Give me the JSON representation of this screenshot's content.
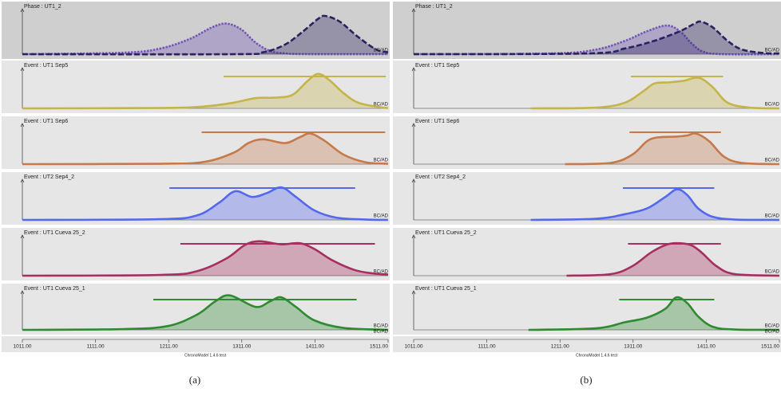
{
  "chart_data": [
    {
      "type": "area",
      "caption": "(a)",
      "footer": "ChronoModel 1.4.6 test",
      "axis_unit": "BC/AD",
      "xlim": [
        1011,
        1511
      ],
      "xticks": [
        {
          "value": 1011,
          "label": "1011.00"
        },
        {
          "value": 1111,
          "label": "1111.00"
        },
        {
          "value": 1211,
          "label": "1211.00"
        },
        {
          "value": 1311,
          "label": "1311.00"
        },
        {
          "value": 1411,
          "label": "1411.00"
        },
        {
          "value": 1511,
          "label": "1511.00"
        }
      ],
      "rows": [
        {
          "title": "Phase : UT1_2",
          "series": [
            {
              "color": "#7356b8",
              "style": "dotted",
              "x": [
                1011,
                1150,
                1200,
                1240,
                1270,
                1290,
                1310,
                1330,
                1350,
                1370,
                1400,
                1511
              ],
              "values": [
                0,
                0.04,
                0.15,
                0.4,
                0.7,
                0.8,
                0.65,
                0.3,
                0.08,
                0.02,
                0,
                0
              ]
            },
            {
              "color": "#2a2160",
              "style": "dashed",
              "x": [
                1011,
                1300,
                1340,
                1370,
                1395,
                1415,
                1425,
                1445,
                1470,
                1495,
                1511
              ],
              "values": [
                0,
                0,
                0.05,
                0.25,
                0.6,
                0.92,
                1.0,
                0.85,
                0.45,
                0.12,
                0.05
              ]
            }
          ]
        },
        {
          "title": "Event : UT1 Sep5",
          "interval": [
            1286,
            1508
          ],
          "series": [
            {
              "color": "#c4b44a",
              "x": [
                1011,
                1200,
                1260,
                1300,
                1330,
                1355,
                1380,
                1400,
                1415,
                1430,
                1450,
                1470,
                1500,
                1511
              ],
              "values": [
                0,
                0.01,
                0.05,
                0.15,
                0.27,
                0.28,
                0.35,
                0.7,
                0.9,
                0.75,
                0.4,
                0.15,
                0.03,
                0.01
              ]
            }
          ]
        },
        {
          "title": "Event : UT1 Sep6",
          "interval": [
            1256,
            1507
          ],
          "series": [
            {
              "color": "#c57a4c",
              "x": [
                1011,
                1200,
                1260,
                1300,
                1320,
                1340,
                1370,
                1390,
                1405,
                1425,
                1450,
                1480,
                1511
              ],
              "values": [
                0,
                0.01,
                0.06,
                0.3,
                0.55,
                0.65,
                0.55,
                0.7,
                0.8,
                0.6,
                0.25,
                0.05,
                0.01
              ]
            }
          ]
        },
        {
          "title": "Event : UT2 Sep4_2",
          "interval": [
            1212,
            1466
          ],
          "series": [
            {
              "color": "#5468ee",
              "x": [
                1011,
                1200,
                1250,
                1280,
                1302,
                1325,
                1345,
                1365,
                1385,
                1410,
                1440,
                1480,
                1511
              ],
              "values": [
                0,
                0.02,
                0.12,
                0.45,
                0.75,
                0.6,
                0.7,
                0.85,
                0.6,
                0.25,
                0.06,
                0.01,
                0
              ]
            }
          ]
        },
        {
          "title": "Event : UT1 Cueva 25_2",
          "interval": [
            1227,
            1493
          ],
          "series": [
            {
              "color": "#a5305f",
              "x": [
                1011,
                1200,
                1250,
                1290,
                1315,
                1335,
                1365,
                1390,
                1410,
                1435,
                1465,
                1490,
                1511
              ],
              "values": [
                0,
                0.02,
                0.12,
                0.45,
                0.8,
                0.9,
                0.82,
                0.85,
                0.7,
                0.4,
                0.15,
                0.06,
                0.03
              ]
            }
          ]
        },
        {
          "title": "Event : UT1 Cueva 25_1",
          "interval": [
            1190,
            1468
          ],
          "series": [
            {
              "color": "#2f8a31",
              "x": [
                1011,
                1150,
                1210,
                1250,
                1275,
                1295,
                1330,
                1350,
                1365,
                1385,
                1410,
                1450,
                1511
              ],
              "values": [
                0,
                0.02,
                0.1,
                0.4,
                0.75,
                0.9,
                0.6,
                0.75,
                0.85,
                0.6,
                0.25,
                0.05,
                0
              ]
            }
          ]
        }
      ]
    },
    {
      "type": "area",
      "caption": "(b)",
      "footer": "ChronoModel 1.4.6 test",
      "axis_unit": "BC/AD",
      "xlim": [
        1011,
        1511
      ],
      "xticks": [
        {
          "value": 1011,
          "label": "1011.00"
        },
        {
          "value": 1111,
          "label": "1111.00"
        },
        {
          "value": 1211,
          "label": "1211.00"
        },
        {
          "value": 1311,
          "label": "1311.00"
        },
        {
          "value": 1411,
          "label": "1411.00"
        },
        {
          "value": 1511,
          "label": "1511.00"
        }
      ],
      "rows": [
        {
          "title": "Phase : UT1_2",
          "series": [
            {
              "color": "#7356b8",
              "style": "dotted",
              "x": [
                1011,
                1200,
                1260,
                1300,
                1330,
                1357,
                1375,
                1390,
                1405,
                1430,
                1511
              ],
              "values": [
                0,
                0.02,
                0.12,
                0.35,
                0.6,
                0.75,
                0.6,
                0.3,
                0.08,
                0,
                0
              ]
            },
            {
              "color": "#2a2160",
              "style": "dashed",
              "x": [
                1011,
                1250,
                1300,
                1340,
                1375,
                1395,
                1404,
                1420,
                1440,
                1460,
                1490,
                1511
              ],
              "values": [
                0,
                0.02,
                0.15,
                0.35,
                0.6,
                0.8,
                0.85,
                0.7,
                0.35,
                0.12,
                0.03,
                0.02
              ]
            }
          ]
        },
        {
          "title": "Event : UT1 Sep5",
          "interval": [
            1308,
            1434
          ],
          "series": [
            {
              "color": "#c4b44a",
              "x": [
                1171,
                1260,
                1300,
                1325,
                1340,
                1360,
                1380,
                1401,
                1420,
                1440,
                1470,
                1511
              ],
              "values": [
                0,
                0.02,
                0.15,
                0.45,
                0.65,
                0.68,
                0.72,
                0.8,
                0.55,
                0.15,
                0.02,
                0
              ]
            }
          ]
        },
        {
          "title": "Event : UT1 Sep6",
          "interval": [
            1306,
            1431
          ],
          "series": [
            {
              "color": "#c57a4c",
              "x": [
                1218,
                1280,
                1310,
                1330,
                1345,
                1370,
                1385,
                1397,
                1415,
                1435,
                1460,
                1511
              ],
              "values": [
                0,
                0.03,
                0.25,
                0.6,
                0.7,
                0.72,
                0.75,
                0.8,
                0.6,
                0.2,
                0.03,
                0
              ]
            }
          ]
        },
        {
          "title": "Event : UT2 Sep4_2",
          "interval": [
            1297,
            1422
          ],
          "series": [
            {
              "color": "#5468ee",
              "x": [
                1171,
                1260,
                1300,
                1330,
                1355,
                1371,
                1385,
                1400,
                1420,
                1450,
                1511
              ],
              "values": [
                0,
                0.03,
                0.15,
                0.3,
                0.6,
                0.8,
                0.65,
                0.3,
                0.08,
                0.01,
                0
              ]
            }
          ]
        },
        {
          "title": "Event : UT1 Cueva 25_2",
          "interval": [
            1304,
            1431
          ],
          "series": [
            {
              "color": "#a5305f",
              "x": [
                1220,
                1280,
                1310,
                1335,
                1355,
                1370,
                1390,
                1405,
                1425,
                1450,
                1511
              ],
              "values": [
                0,
                0.04,
                0.25,
                0.6,
                0.8,
                0.85,
                0.8,
                0.6,
                0.25,
                0.04,
                0
              ]
            }
          ]
        },
        {
          "title": "Event : UT1 Cueva 25_1",
          "interval": [
            1292,
            1422
          ],
          "series": [
            {
              "color": "#2f8a31",
              "x": [
                1168,
                1260,
                1300,
                1330,
                1355,
                1370,
                1385,
                1400,
                1420,
                1450,
                1511
              ],
              "values": [
                0,
                0.04,
                0.2,
                0.32,
                0.55,
                0.85,
                0.7,
                0.35,
                0.08,
                0.01,
                0
              ]
            }
          ]
        }
      ]
    }
  ]
}
